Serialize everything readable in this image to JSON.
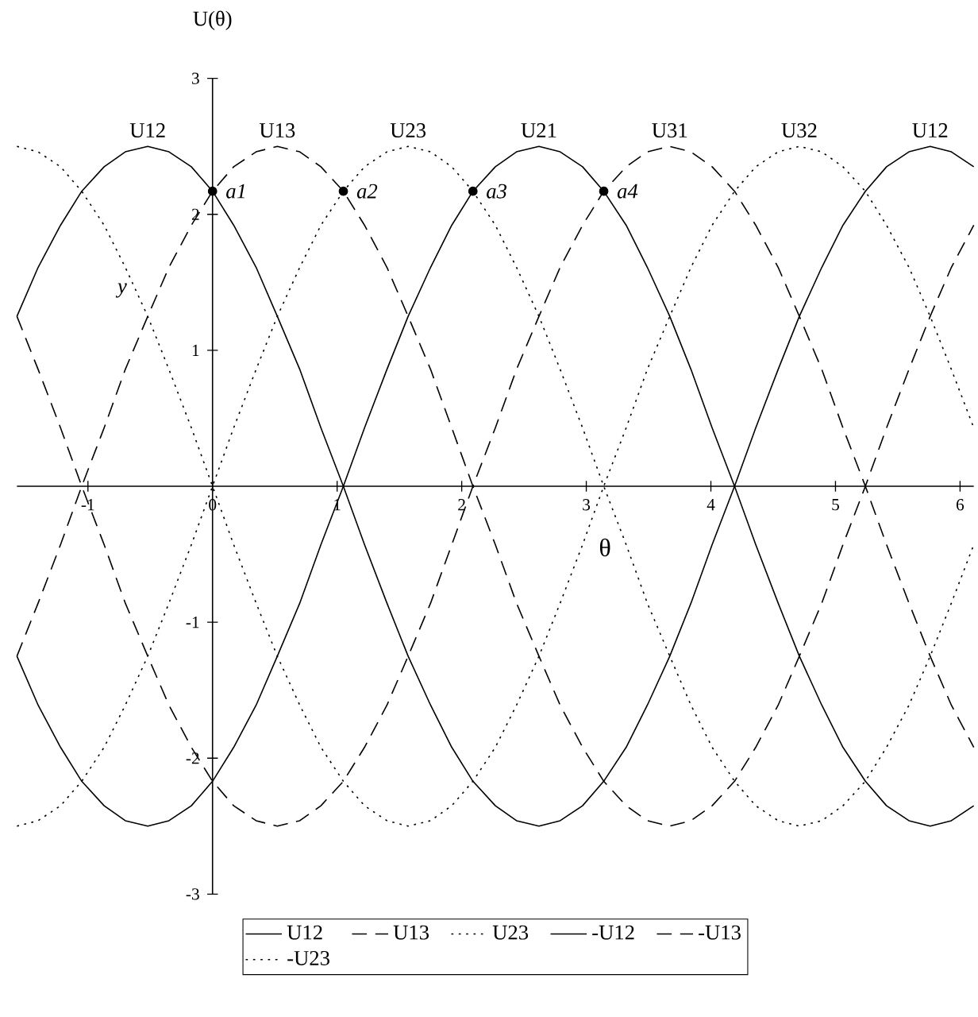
{
  "chart_data": {
    "type": "line",
    "xlabel": "θ",
    "ylabel": "U(θ)",
    "x": [
      -1.57,
      -1.4,
      -1.22,
      -1.05,
      -0.87,
      -0.7,
      -0.52,
      -0.35,
      -0.17,
      0,
      0.17,
      0.35,
      0.52,
      0.7,
      0.87,
      1.05,
      1.22,
      1.4,
      1.57,
      1.75,
      1.92,
      2.09,
      2.27,
      2.44,
      2.62,
      2.79,
      2.97,
      3.14,
      3.32,
      3.49,
      3.67,
      3.84,
      4.01,
      4.19,
      4.36,
      4.54,
      4.71,
      4.89,
      5.06,
      5.24,
      5.41,
      5.59,
      5.76,
      5.93,
      6.11
    ],
    "series": [
      {
        "name": "U12",
        "color": "#000000",
        "line_style": "solid",
        "values": [
          1.25,
          1.61,
          1.92,
          2.17,
          2.35,
          2.46,
          2.5,
          2.46,
          2.35,
          2.17,
          1.92,
          1.61,
          1.25,
          0.86,
          0.43,
          0,
          -0.43,
          -0.86,
          -1.25,
          -1.61,
          -1.92,
          -2.17,
          -2.35,
          -2.46,
          -2.5,
          -2.46,
          -2.35,
          -2.17,
          -1.92,
          -1.61,
          -1.25,
          -0.86,
          -0.43,
          0,
          0.43,
          0.86,
          1.25,
          1.61,
          1.92,
          2.17,
          2.35,
          2.46,
          2.5,
          2.46,
          2.35
        ]
      },
      {
        "name": "U13",
        "color": "#000000",
        "line_style": "dashed",
        "values": [
          -1.25,
          -0.86,
          -0.43,
          0,
          0.43,
          0.86,
          1.25,
          1.61,
          1.92,
          2.17,
          2.35,
          2.46,
          2.5,
          2.46,
          2.35,
          2.17,
          1.92,
          1.61,
          1.25,
          0.86,
          0.43,
          0,
          -0.43,
          -0.86,
          -1.25,
          -1.61,
          -1.92,
          -2.17,
          -2.35,
          -2.46,
          -2.5,
          -2.46,
          -2.35,
          -2.17,
          -1.92,
          -1.61,
          -1.25,
          -0.86,
          -0.43,
          0,
          0.43,
          0.86,
          1.25,
          1.61,
          1.92
        ]
      },
      {
        "name": "U23",
        "color": "#000000",
        "line_style": "dotted",
        "values": [
          -2.5,
          -2.46,
          -2.35,
          -2.17,
          -1.92,
          -1.61,
          -1.25,
          -0.86,
          -0.43,
          0,
          0.43,
          0.86,
          1.25,
          1.61,
          1.92,
          2.17,
          2.35,
          2.46,
          2.5,
          2.46,
          2.35,
          2.17,
          1.92,
          1.61,
          1.25,
          0.86,
          0.43,
          0,
          -0.43,
          -0.86,
          -1.25,
          -1.61,
          -1.92,
          -2.17,
          -2.35,
          -2.46,
          -2.5,
          -2.46,
          -2.35,
          -2.17,
          -1.92,
          -1.61,
          -1.25,
          -0.86,
          -0.43
        ]
      },
      {
        "name": "-U12",
        "color": "#000000",
        "line_style": "solid",
        "values": [
          -1.25,
          -1.61,
          -1.92,
          -2.17,
          -2.35,
          -2.46,
          -2.5,
          -2.46,
          -2.35,
          -2.17,
          -1.92,
          -1.61,
          -1.25,
          -0.86,
          -0.43,
          0,
          0.43,
          0.86,
          1.25,
          1.61,
          1.92,
          2.17,
          2.35,
          2.46,
          2.5,
          2.46,
          2.35,
          2.17,
          1.92,
          1.61,
          1.25,
          0.86,
          0.43,
          0,
          -0.43,
          -0.86,
          -1.25,
          -1.61,
          -1.92,
          -2.17,
          -2.35,
          -2.46,
          -2.5,
          -2.46,
          -2.35
        ]
      },
      {
        "name": "-U13",
        "color": "#000000",
        "line_style": "dashed",
        "values": [
          1.25,
          0.86,
          0.43,
          0,
          -0.43,
          -0.86,
          -1.25,
          -1.61,
          -1.92,
          -2.17,
          -2.35,
          -2.46,
          -2.5,
          -2.46,
          -2.35,
          -2.17,
          -1.92,
          -1.61,
          -1.25,
          -0.86,
          -0.43,
          0,
          0.43,
          0.86,
          1.25,
          1.61,
          1.92,
          2.17,
          2.35,
          2.46,
          2.5,
          2.46,
          2.35,
          2.17,
          1.92,
          1.61,
          1.25,
          0.86,
          0.43,
          0,
          -0.43,
          -0.86,
          -1.25,
          -1.61,
          -1.92
        ]
      },
      {
        "name": "-U23",
        "color": "#000000",
        "line_style": "dotted",
        "values": [
          2.5,
          2.46,
          2.35,
          2.17,
          1.92,
          1.61,
          1.25,
          0.86,
          0.43,
          0,
          -0.43,
          -0.86,
          -1.25,
          -1.61,
          -1.92,
          -2.17,
          -2.35,
          -2.46,
          -2.5,
          -2.46,
          -2.35,
          -2.17,
          -1.92,
          -1.61,
          -1.25,
          -0.86,
          -0.43,
          0,
          0.43,
          0.86,
          1.25,
          1.61,
          1.92,
          2.17,
          2.35,
          2.46,
          2.5,
          2.46,
          2.35,
          2.17,
          1.92,
          1.61,
          1.25,
          0.86,
          0.43
        ]
      },
      {
        "type": "scatter",
        "color": "#000000",
        "marker": "circle",
        "x": [
          0,
          1.05,
          2.09,
          3.14
        ],
        "values": [
          2.17,
          2.17,
          2.17,
          2.17
        ]
      }
    ],
    "annotations": [
      {
        "text": "U12",
        "x": -0.52,
        "y": 2.5
      },
      {
        "text": "U13",
        "x": 0.52,
        "y": 2.5
      },
      {
        "text": "U23",
        "x": 1.57,
        "y": 2.5
      },
      {
        "text": "U21",
        "x": 2.62,
        "y": 2.5
      },
      {
        "text": "U31",
        "x": 3.67,
        "y": 2.5
      },
      {
        "text": "U32",
        "x": 4.71,
        "y": 2.5
      },
      {
        "text": "U12",
        "x": 5.76,
        "y": 2.5
      },
      {
        "text": "a1",
        "x": 0,
        "y": 2.17
      },
      {
        "text": "a2",
        "x": 1.05,
        "y": 2.17
      },
      {
        "text": "a3",
        "x": 2.09,
        "y": 2.17
      },
      {
        "text": "a4",
        "x": 3.14,
        "y": 2.17
      },
      "y"
    ],
    "xlim": [
      -1.57,
      6.11
    ],
    "ylim": [
      -3,
      3
    ],
    "xticks": [
      -1,
      0,
      1,
      2,
      3,
      4,
      5,
      6
    ],
    "yticks": [
      -3,
      -2,
      -1,
      1,
      2,
      3
    ],
    "grid": false,
    "legend": "bottom"
  }
}
